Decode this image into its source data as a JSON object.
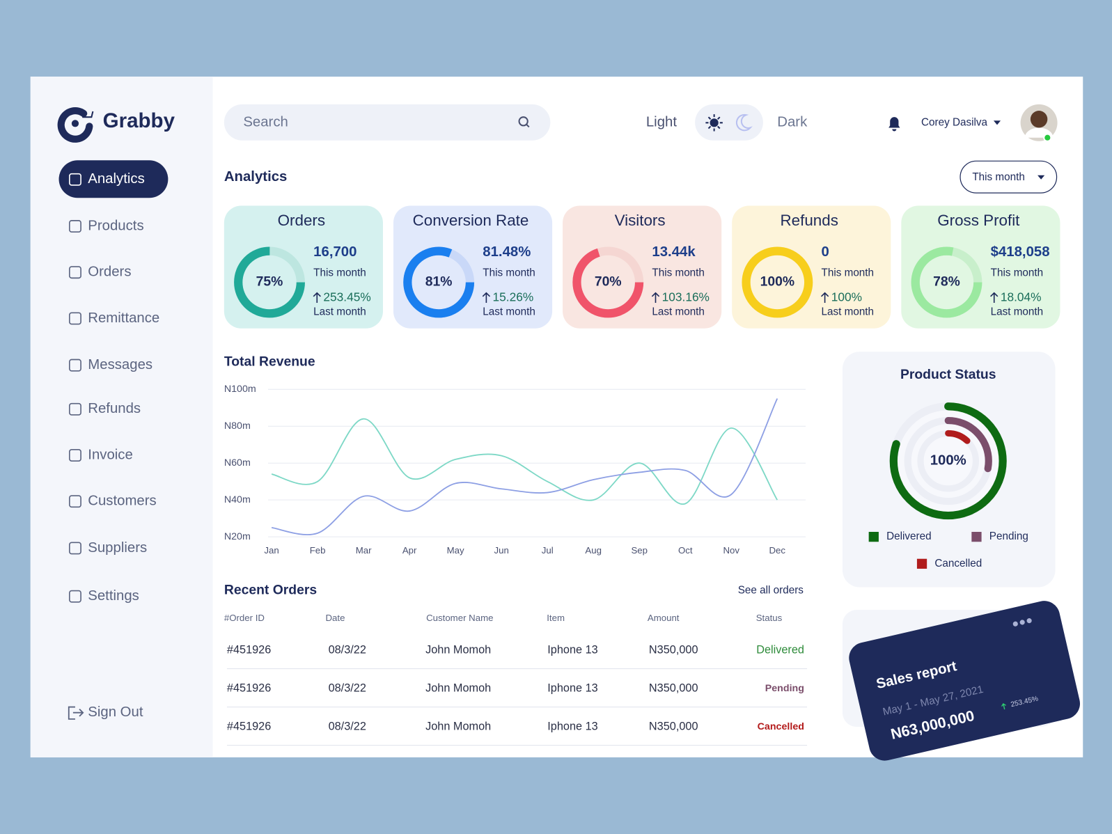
{
  "brand": "Grabby",
  "nav": {
    "items": [
      "Analytics",
      "Products",
      "Orders",
      "Remittance",
      "Messages",
      "Refunds",
      "Invoice",
      "Customers",
      "Suppliers",
      "Settings"
    ],
    "sign_out": "Sign Out"
  },
  "header": {
    "search_placeholder": "Search",
    "light": "Light",
    "dark": "Dark",
    "user": "Corey Dasilva"
  },
  "analytics": {
    "title": "Analytics",
    "period": "This month",
    "kpis": [
      {
        "title": "Orders",
        "percent": 75,
        "percent_label": "75%",
        "value": "16,700",
        "value_caption": "This month",
        "change": "253.45%",
        "change_caption": "Last month",
        "color": "#20a998",
        "track": "#bde6e0",
        "background": "#d5f1ef"
      },
      {
        "title": "Conversion Rate",
        "percent": 81,
        "percent_label": "81%",
        "value": "81.48%",
        "value_caption": "This month",
        "change": "15.26%",
        "change_caption": "Last month",
        "color": "#1a7fef",
        "track": "#c9d8f8",
        "background": "#e1e9fb"
      },
      {
        "title": "Visitors",
        "percent": 70,
        "percent_label": "70%",
        "value": "13.44k",
        "value_caption": "This month",
        "change": "103.16%",
        "change_caption": "Last month",
        "color": "#f0546a",
        "track": "#f5d6d2",
        "background": "#f9e6e1"
      },
      {
        "title": "Refunds",
        "percent": 100,
        "percent_label": "100%",
        "value": "0",
        "value_caption": "This month",
        "change": "100%",
        "change_caption": "Last month",
        "color": "#f7ce1c",
        "track": "#f9ebc0",
        "background": "#fdf4da"
      },
      {
        "title": "Gross Profit",
        "percent": 78,
        "percent_label": "78%",
        "value": "$418,058",
        "value_caption": "This month",
        "change": "18.04%",
        "change_caption": "Last month",
        "color": "#9be9a0",
        "track": "#c8efcb",
        "background": "#e1f7e2"
      }
    ]
  },
  "revenue": {
    "title": "Total Revenue",
    "type": "line",
    "categories": [
      "Jan",
      "Feb",
      "Mar",
      "Apr",
      "May",
      "Jun",
      "Jul",
      "Aug",
      "Sep",
      "Oct",
      "Nov",
      "Dec"
    ],
    "ylim": [
      20,
      100
    ],
    "yticks": [
      {
        "value": 20,
        "label": "N20m"
      },
      {
        "value": 40,
        "label": "N40m"
      },
      {
        "value": 60,
        "label": "N60m"
      },
      {
        "value": 80,
        "label": "N80m"
      },
      {
        "value": 100,
        "label": "N100m"
      }
    ],
    "grid": true,
    "series": [
      {
        "color": "#7dd8c6",
        "values": [
          54,
          50,
          84,
          52,
          62,
          64,
          50,
          40,
          60,
          38,
          79,
          40
        ]
      },
      {
        "color": "#8d9fe4",
        "values": [
          25,
          22,
          42,
          34,
          49,
          46,
          44,
          51,
          55,
          56,
          43,
          95
        ]
      }
    ]
  },
  "product_status": {
    "title": "Product Status",
    "center_label": "100%",
    "segments": [
      {
        "name": "Delivered",
        "color": "#0e6b12",
        "value": 80
      },
      {
        "name": "Pending",
        "color": "#7b4e6b",
        "value": 28
      },
      {
        "name": "Cancelled",
        "color": "#b01c1c",
        "value": 12
      }
    ]
  },
  "orders": {
    "title": "Recent Orders",
    "see_all": "See all orders",
    "columns": [
      "#Order ID",
      "Date",
      "Customer Name",
      "Item",
      "Amount",
      "Status"
    ],
    "rows": [
      [
        "#451926",
        "08/3/22",
        "John Momoh",
        "Iphone 13",
        "N350,000",
        "Delivered"
      ],
      [
        "#451926",
        "08/3/22",
        "John Momoh",
        "Iphone 13",
        "N350,000",
        "Pending"
      ],
      [
        "#451926",
        "08/3/22",
        "John Momoh",
        "Iphone 13",
        "N350,000",
        "Cancelled"
      ]
    ]
  },
  "sales_report": {
    "title": "Sales report",
    "period": "May 1 - May 27, 2021",
    "amount": "N63,000,000",
    "change": "253.45%"
  }
}
